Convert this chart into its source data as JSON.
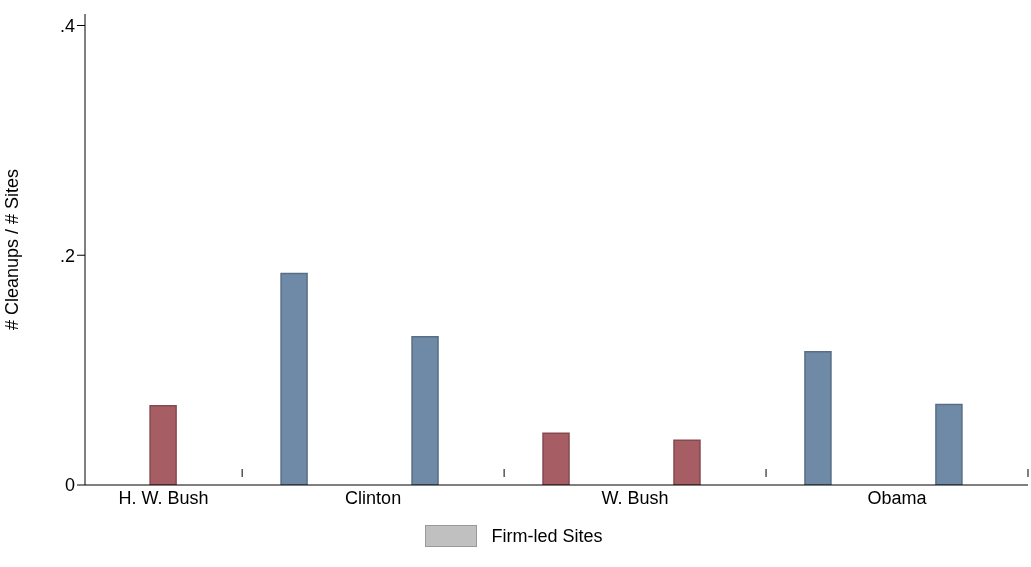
{
  "chart_data": {
    "type": "bar",
    "ylabel": "# Cleanups / # Sites",
    "categories": [
      null,
      null,
      null,
      null,
      null,
      null,
      null
    ],
    "series": [
      {
        "name": "Firm-led Sites",
        "color": "#c0c0c0",
        "colors": [
          "#a65d63",
          "#6f8aa6",
          "#6f8aa6",
          "#a65d63",
          "#a65d63",
          "#6f8aa6",
          "#6f8aa6"
        ],
        "values": [
          0.069,
          0.184,
          0.129,
          0.045,
          0.039,
          0.116,
          0.07
        ]
      }
    ],
    "annotations": [
      "H. W. Bush",
      "Clinton",
      "W. Bush",
      "Obama"
    ],
    "ylim": [
      0,
      0.41
    ],
    "yticks": [
      {
        "value": 0,
        "label": "0"
      },
      {
        "value": 0.2,
        "label": ".2"
      },
      {
        "value": 0.4,
        "label": ".4"
      }
    ],
    "legend": "bottom"
  }
}
